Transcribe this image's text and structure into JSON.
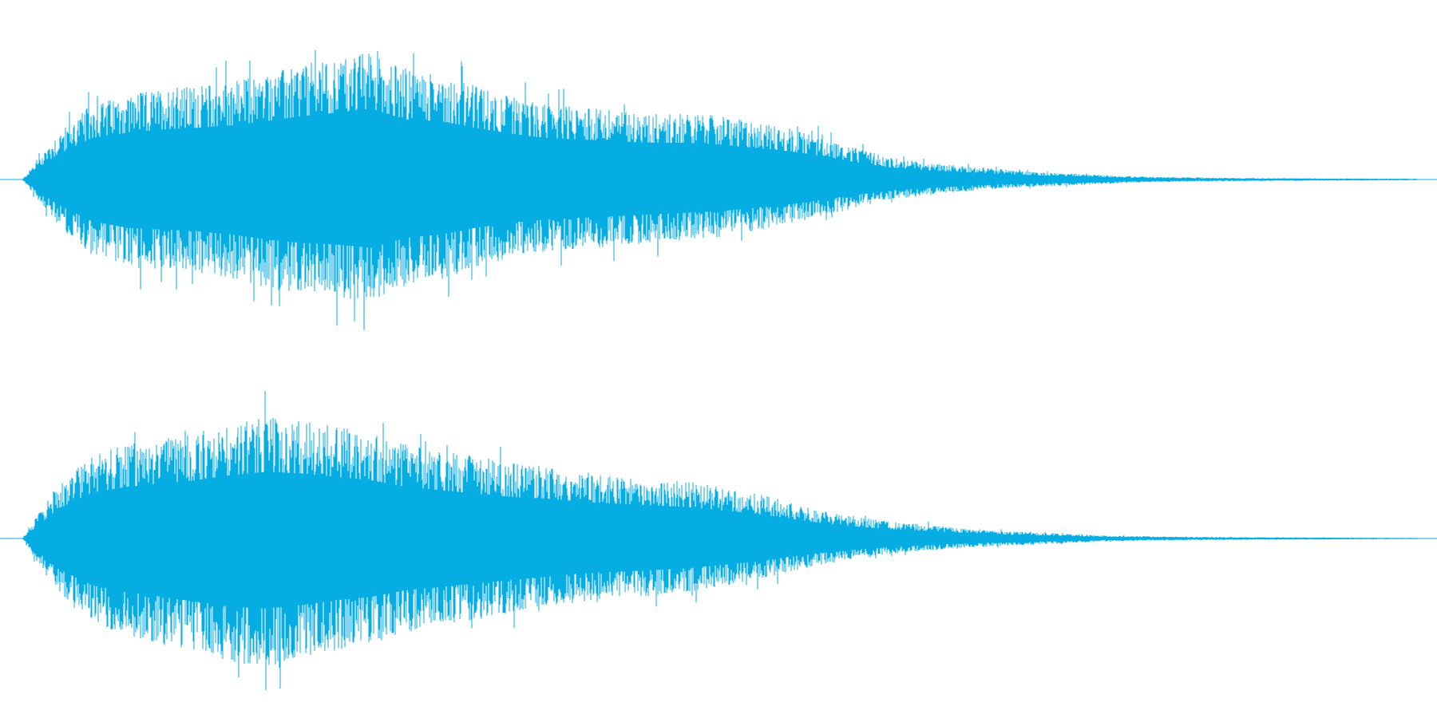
{
  "waveform": {
    "color": "#06ADE3",
    "background": "#FFFFFF",
    "channels": [
      {
        "name": "",
        "envelope_top": [
          0.0,
          0.3,
          0.5,
          0.56,
          0.6,
          0.62,
          0.65,
          0.7,
          0.76,
          0.8,
          0.85,
          0.72,
          0.7,
          0.62,
          0.55,
          0.5,
          0.48,
          0.46,
          0.44,
          0.44,
          0.42,
          0.38,
          0.34,
          0.28,
          0.2,
          0.14,
          0.11,
          0.09,
          0.07,
          0.05,
          0.04,
          0.03,
          0.02,
          0.015,
          0.012,
          0.01,
          0.009,
          0.008,
          0.007,
          0.006,
          0.005
        ],
        "envelope_bottom": [
          0.0,
          0.3,
          0.5,
          0.58,
          0.6,
          0.62,
          0.66,
          0.72,
          0.76,
          0.78,
          0.82,
          0.7,
          0.66,
          0.58,
          0.52,
          0.48,
          0.46,
          0.44,
          0.42,
          0.4,
          0.38,
          0.34,
          0.3,
          0.24,
          0.18,
          0.13,
          0.1,
          0.08,
          0.06,
          0.05,
          0.04,
          0.03,
          0.02,
          0.015,
          0.012,
          0.01,
          0.009,
          0.008,
          0.007,
          0.006,
          0.005
        ]
      },
      {
        "name": "",
        "envelope_top": [
          0.0,
          0.35,
          0.55,
          0.62,
          0.66,
          0.7,
          0.76,
          0.8,
          0.78,
          0.74,
          0.7,
          0.62,
          0.58,
          0.54,
          0.5,
          0.48,
          0.44,
          0.42,
          0.4,
          0.38,
          0.34,
          0.3,
          0.24,
          0.18,
          0.14,
          0.11,
          0.09,
          0.07,
          0.05,
          0.04,
          0.03,
          0.02,
          0.015,
          0.012,
          0.01,
          0.009,
          0.008,
          0.007,
          0.006,
          0.005,
          0.004
        ],
        "envelope_bottom": [
          0.0,
          0.36,
          0.56,
          0.64,
          0.7,
          0.76,
          0.82,
          0.84,
          0.8,
          0.74,
          0.7,
          0.62,
          0.58,
          0.54,
          0.5,
          0.46,
          0.42,
          0.4,
          0.38,
          0.36,
          0.32,
          0.28,
          0.22,
          0.17,
          0.13,
          0.1,
          0.08,
          0.06,
          0.05,
          0.04,
          0.03,
          0.02,
          0.015,
          0.012,
          0.01,
          0.009,
          0.008,
          0.007,
          0.006,
          0.005,
          0.004
        ]
      }
    ]
  }
}
